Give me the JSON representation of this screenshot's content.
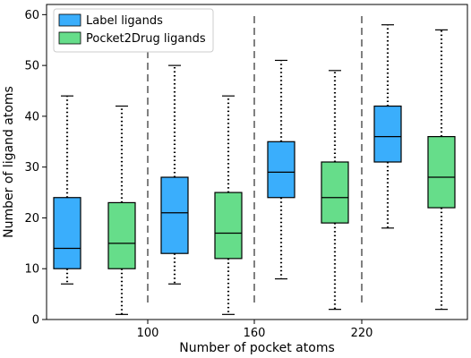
{
  "chart_data": {
    "type": "box",
    "xlabel": "Number of pocket atoms",
    "ylabel": "Number of ligand atoms",
    "ylim": [
      0,
      62
    ],
    "yticks": [
      0,
      10,
      20,
      30,
      40,
      50,
      60
    ],
    "group_separators": [
      "100",
      "160",
      "220"
    ],
    "legend": {
      "placement": "top-left",
      "entries": [
        {
          "name": "Label ligands",
          "color": "#3aaefc"
        },
        {
          "name": "Pocket2Drug ligands",
          "color": "#66dd8a"
        }
      ]
    },
    "series": [
      {
        "name": "Label ligands",
        "color": "#3aaefc",
        "boxes": [
          {
            "group": "<100",
            "whislo": 7,
            "q1": 10,
            "med": 14,
            "q3": 24,
            "whishi": 44
          },
          {
            "group": "100-160",
            "whislo": 7,
            "q1": 13,
            "med": 21,
            "q3": 28,
            "whishi": 50
          },
          {
            "group": "160-220",
            "whislo": 8,
            "q1": 24,
            "med": 29,
            "q3": 35,
            "whishi": 51
          },
          {
            "group": ">220",
            "whislo": 18,
            "q1": 31,
            "med": 36,
            "q3": 42,
            "whishi": 58
          }
        ]
      },
      {
        "name": "Pocket2Drug ligands",
        "color": "#66dd8a",
        "boxes": [
          {
            "group": "<100",
            "whislo": 1,
            "q1": 10,
            "med": 15,
            "q3": 23,
            "whishi": 42
          },
          {
            "group": "100-160",
            "whislo": 1,
            "q1": 12,
            "med": 17,
            "q3": 25,
            "whishi": 44
          },
          {
            "group": "160-220",
            "whislo": 2,
            "q1": 19,
            "med": 24,
            "q3": 31,
            "whishi": 49
          },
          {
            "group": ">220",
            "whislo": 2,
            "q1": 22,
            "med": 28,
            "q3": 36,
            "whishi": 57
          }
        ]
      }
    ]
  }
}
